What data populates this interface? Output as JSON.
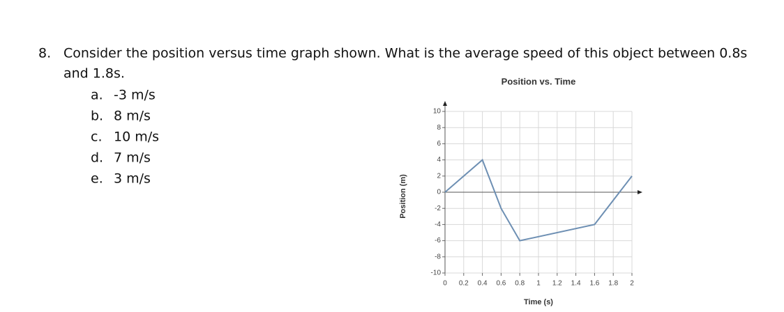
{
  "question": {
    "number": "8.",
    "text_lines": [
      "Consider the position versus time graph shown. What is the average speed of this object between 0.8s",
      "and 1.8s."
    ],
    "options": [
      {
        "letter": "a.",
        "text": "-3 m/s"
      },
      {
        "letter": "b.",
        "text": "8 m/s"
      },
      {
        "letter": "c.",
        "text": "10 m/s"
      },
      {
        "letter": "d.",
        "text": "7 m/s"
      },
      {
        "letter": "e.",
        "text": "3 m/s"
      }
    ]
  },
  "chart_data": {
    "type": "line",
    "title": "Position vs. Time",
    "x_label": "Time (s)",
    "y_label": "Position (m)",
    "x": [
      0,
      0.4,
      0.6,
      0.8,
      1.6,
      2
    ],
    "values": [
      0,
      4,
      -2,
      -6,
      -4,
      2
    ],
    "color": "#6d8fb3",
    "xlim": [
      0,
      2
    ],
    "ylim": [
      -10,
      10
    ],
    "xticks": [
      0,
      0.2,
      0.4,
      0.6,
      0.8,
      1,
      1.2,
      1.4,
      1.6,
      1.8,
      2
    ],
    "yticks": [
      -10,
      -8,
      -6,
      -4,
      -2,
      0,
      2,
      4,
      6,
      8,
      10
    ],
    "grid": true
  }
}
